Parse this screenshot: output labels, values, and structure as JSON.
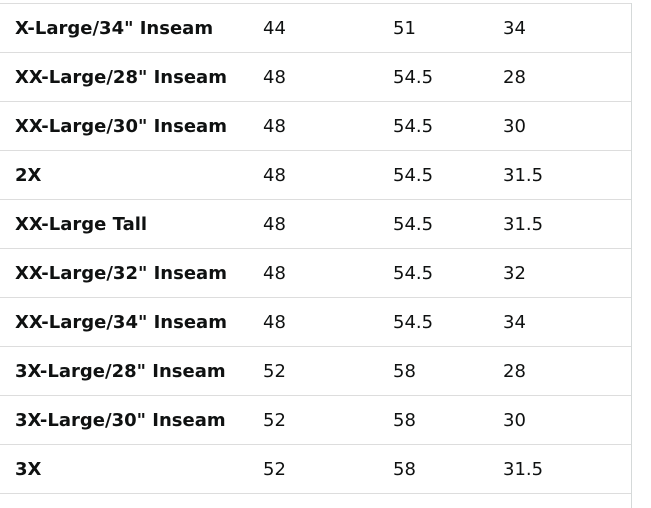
{
  "table": {
    "rows": [
      [
        "X-Large/34\" Inseam",
        "44",
        "51",
        "34"
      ],
      [
        "XX-Large/28\" Inseam",
        "48",
        "54.5",
        "28"
      ],
      [
        "XX-Large/30\" Inseam",
        "48",
        "54.5",
        "30"
      ],
      [
        "2X",
        "48",
        "54.5",
        "31.5"
      ],
      [
        "XX-Large Tall",
        "48",
        "54.5",
        "31.5"
      ],
      [
        "XX-Large/32\" Inseam",
        "48",
        "54.5",
        "32"
      ],
      [
        "XX-Large/34\" Inseam",
        "48",
        "54.5",
        "34"
      ],
      [
        "3X-Large/28\" Inseam",
        "52",
        "58",
        "28"
      ],
      [
        "3X-Large/30\" Inseam",
        "52",
        "58",
        "30"
      ],
      [
        "3X",
        "52",
        "58",
        "31.5"
      ]
    ]
  }
}
